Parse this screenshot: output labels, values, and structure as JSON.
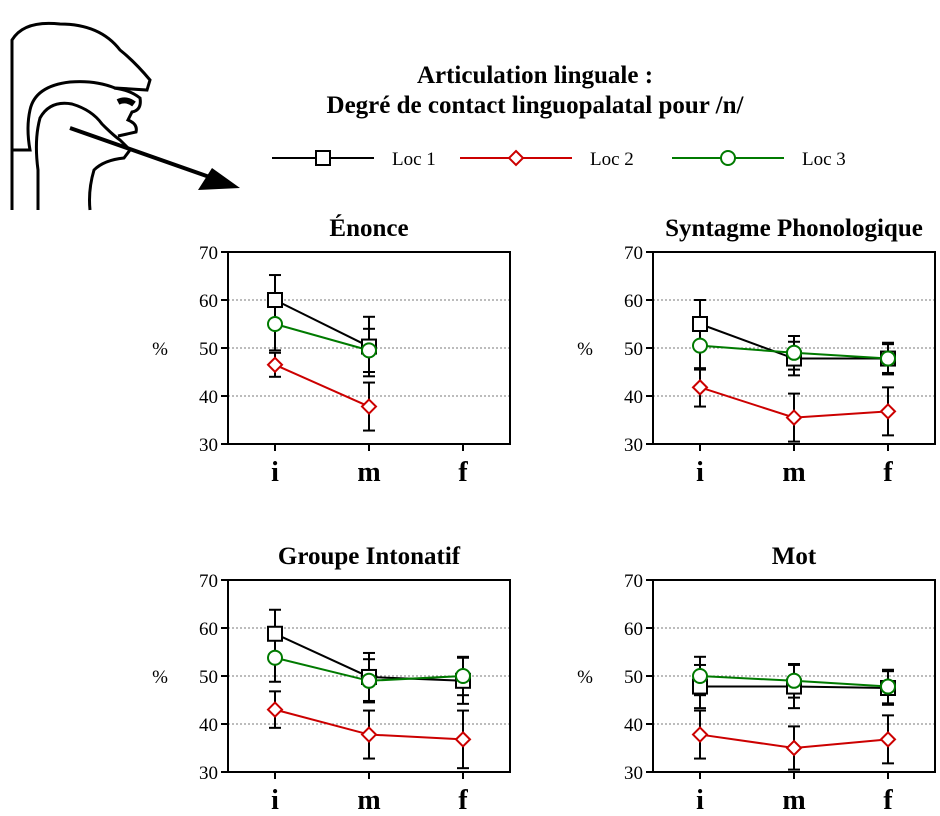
{
  "figure": {
    "title_line1": "Articulation linguale :",
    "title_line2": "Degré de contact linguopalatal pour /n/"
  },
  "legend": [
    {
      "name": "Loc 1",
      "color": "#000000",
      "marker": "square"
    },
    {
      "name": "Loc 2",
      "color": "#cc0000",
      "marker": "diamond"
    },
    {
      "name": "Loc 3",
      "color": "#007a00",
      "marker": "circle"
    }
  ],
  "chart_data": [
    {
      "type": "line",
      "title": "Énonce",
      "ylabel": "%",
      "categories": [
        "i",
        "m",
        "f"
      ],
      "ylim": [
        30,
        70
      ],
      "yticks": [
        30,
        40,
        50,
        60,
        70
      ],
      "grid": true,
      "series": [
        {
          "name": "Loc 1",
          "values": [
            60,
            50.3,
            null
          ],
          "err": [
            5.2,
            6.2,
            null
          ]
        },
        {
          "name": "Loc 2",
          "values": [
            46.5,
            37.8,
            null
          ],
          "err": [
            2.5,
            5,
            null
          ]
        },
        {
          "name": "Loc 3",
          "values": [
            55,
            49.5,
            null
          ],
          "err": [
            5.5,
            4.5,
            null
          ]
        }
      ]
    },
    {
      "type": "line",
      "title": "Syntagme Phonologique",
      "ylabel": "%",
      "categories": [
        "i",
        "m",
        "f"
      ],
      "ylim": [
        30,
        70
      ],
      "yticks": [
        30,
        40,
        50,
        60,
        70
      ],
      "grid": true,
      "series": [
        {
          "name": "Loc 1",
          "values": [
            55,
            47.8,
            47.8
          ],
          "err": [
            5,
            3.5,
            3.3
          ]
        },
        {
          "name": "Loc 2",
          "values": [
            41.8,
            35.5,
            36.8
          ],
          "err": [
            4,
            5,
            5
          ]
        },
        {
          "name": "Loc 3",
          "values": [
            50.5,
            49,
            47.8
          ],
          "err": [
            5,
            3.5,
            3
          ]
        }
      ]
    },
    {
      "type": "line",
      "title": "Groupe Intonatif",
      "ylabel": "%",
      "categories": [
        "i",
        "m",
        "f"
      ],
      "ylim": [
        30,
        70
      ],
      "yticks": [
        30,
        40,
        50,
        60,
        70
      ],
      "grid": true,
      "series": [
        {
          "name": "Loc 1",
          "values": [
            58.8,
            49.8,
            49
          ],
          "err": [
            5,
            5,
            4.8
          ]
        },
        {
          "name": "Loc 2",
          "values": [
            43,
            37.8,
            36.8
          ],
          "err": [
            3.8,
            5,
            6
          ]
        },
        {
          "name": "Loc 3",
          "values": [
            53.8,
            49,
            50
          ],
          "err": [
            5,
            4.5,
            4
          ]
        }
      ]
    },
    {
      "type": "line",
      "title": "Mot",
      "ylabel": "%",
      "categories": [
        "i",
        "m",
        "f"
      ],
      "ylim": [
        30,
        70
      ],
      "yticks": [
        30,
        40,
        50,
        60,
        70
      ],
      "grid": true,
      "series": [
        {
          "name": "Loc 1",
          "values": [
            47.8,
            47.8,
            47.5
          ],
          "err": [
            4.5,
            4.5,
            3.5
          ]
        },
        {
          "name": "Loc 2",
          "values": [
            37.8,
            35,
            36.8
          ],
          "err": [
            5,
            4.5,
            5
          ]
        },
        {
          "name": "Loc 3",
          "values": [
            50,
            49,
            47.8
          ],
          "err": [
            4,
            3.5,
            3.5
          ]
        }
      ]
    }
  ]
}
